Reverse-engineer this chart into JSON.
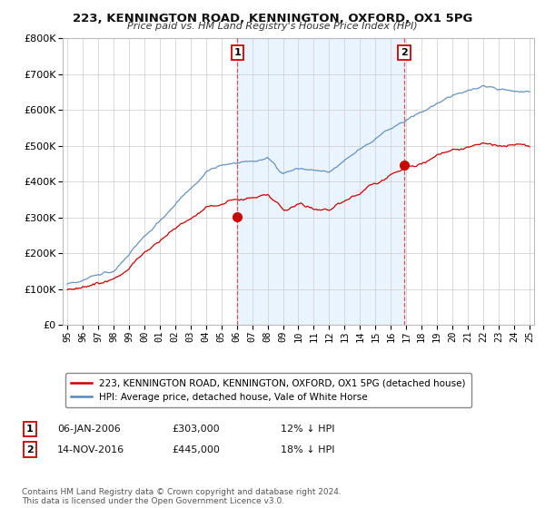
{
  "title": "223, KENNINGTON ROAD, KENNINGTON, OXFORD, OX1 5PG",
  "subtitle": "Price paid vs. HM Land Registry's House Price Index (HPI)",
  "legend_line1": "223, KENNINGTON ROAD, KENNINGTON, OXFORD, OX1 5PG (detached house)",
  "legend_line2": "HPI: Average price, detached house, Vale of White Horse",
  "annotation1_label": "1",
  "annotation1_date": "06-JAN-2006",
  "annotation1_price": "£303,000",
  "annotation1_hpi": "12% ↓ HPI",
  "annotation1_year": 2006.04,
  "annotation1_value": 303000,
  "annotation2_label": "2",
  "annotation2_date": "14-NOV-2016",
  "annotation2_price": "£445,000",
  "annotation2_hpi": "18% ↓ HPI",
  "annotation2_year": 2016.87,
  "annotation2_value": 445000,
  "footer": "Contains HM Land Registry data © Crown copyright and database right 2024.\nThis data is licensed under the Open Government Licence v3.0.",
  "ylim": [
    0,
    800000
  ],
  "yticks": [
    0,
    100000,
    200000,
    300000,
    400000,
    500000,
    600000,
    700000,
    800000
  ],
  "xlim_start": 1994.7,
  "xlim_end": 2025.3,
  "red_color": "#cc0000",
  "blue_color": "#5588bb",
  "blue_fill": "#ddeeff",
  "dashed_color": "#dd4444",
  "background_color": "#ffffff",
  "grid_color": "#cccccc"
}
